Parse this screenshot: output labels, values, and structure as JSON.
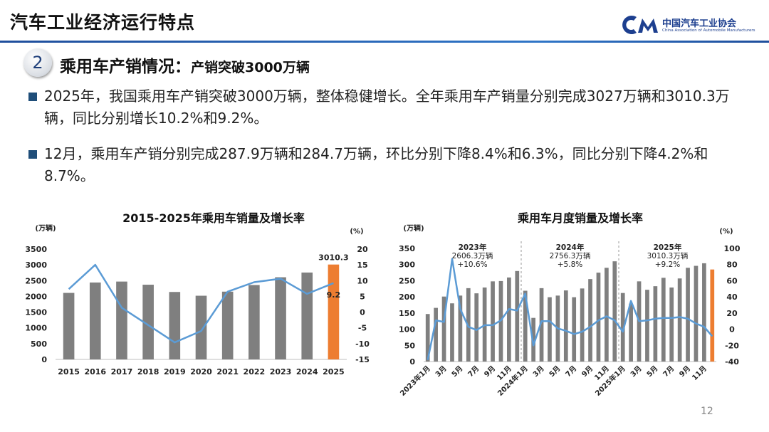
{
  "header": {
    "title": "汽车工业经济运行特点",
    "logo_cn": "中国汽车工业协会",
    "logo_en": "China Association of Automobile Manufacturers"
  },
  "section": {
    "number": "2",
    "title": "乘用车产销情况：",
    "subtitle": "产销突破3000万辆"
  },
  "bullets": [
    "2025年，我国乘用车产销突破3000万辆，整体稳健增长。全年乘用车产销量分别完成3027万辆和3010.3万辆，同比分别增长10.2%和9.2%。",
    "12月，乘用车产销分别完成287.9万辆和284.7万辆，环比分别下降8.4%和6.3%，同比分别下降4.2%和8.7%。"
  ],
  "page_number": "12",
  "chart_data": [
    {
      "type": "bar_line",
      "title": "2015-2025年乘用车销量及增长率",
      "y_label": "(万辆)",
      "y2_label": "(%)",
      "categories": [
        "2015",
        "2016",
        "2017",
        "2018",
        "2019",
        "2020",
        "2021",
        "2022",
        "2023",
        "2024",
        "2025"
      ],
      "series": [
        {
          "type": "bar",
          "color": "#7f7f7f",
          "highlight_color": "#ed7d31",
          "values": [
            2110,
            2440,
            2470,
            2370,
            2140,
            2020,
            2150,
            2360,
            2606.3,
            2756.3,
            3010.3
          ]
        },
        {
          "type": "line",
          "axis": "y2",
          "color": "#5b9bd5",
          "values": [
            7.3,
            15,
            1.4,
            -4.1,
            -9.6,
            -6,
            6.5,
            9.5,
            10.6,
            5.8,
            9.2
          ]
        }
      ],
      "data_labels": "last",
      "ylim": [
        0,
        3500
      ],
      "yticks": [
        0,
        500,
        1000,
        1500,
        2000,
        2500,
        3000,
        3500
      ],
      "y2lim": [
        -15,
        20
      ],
      "y2ticks": [
        -15,
        -10,
        -5,
        0,
        5,
        10,
        15,
        20
      ]
    },
    {
      "type": "bar_line",
      "title": "乘用车月度销量及增长率",
      "y_label": "(万辆)",
      "y2_label": "(%)",
      "categories": [
        "2023年1月",
        null,
        "3月",
        null,
        "5月",
        null,
        "7月",
        null,
        "9月",
        null,
        "11月",
        null,
        "2024年1月",
        null,
        "3月",
        null,
        "5月",
        null,
        "7月",
        null,
        "9月",
        null,
        "11月",
        null,
        "2025年1月",
        null,
        "3月",
        null,
        "5月",
        null,
        "7月",
        null,
        "9月",
        null,
        "11月",
        null
      ],
      "series": [
        {
          "type": "bar",
          "color": "#7f7f7f",
          "highlight_color": "#ed7d31",
          "values": [
            147,
            166,
            201,
            180,
            204,
            227,
            211,
            229,
            248,
            249,
            260,
            280,
            219,
            135,
            227,
            199,
            204,
            220,
            199,
            226,
            255,
            275,
            290,
            310,
            212,
            179,
            248,
            222,
            233,
            259,
            229,
            257,
            290,
            296,
            304,
            284.7
          ]
        },
        {
          "type": "line",
          "axis": "y2",
          "color": "#5b9bd5",
          "values": [
            -38,
            11,
            9,
            87,
            25,
            3,
            -1,
            5,
            5,
            11,
            25,
            23,
            44,
            -20,
            10,
            10,
            1,
            -2,
            -6,
            -3,
            3,
            11,
            16,
            11,
            -3,
            35,
            10,
            11,
            13,
            14,
            14,
            15,
            13,
            7,
            3,
            -8.7
          ]
        }
      ],
      "annotations": [
        {
          "lines": [
            "2023年",
            "2606.3万辆",
            "+10.6%"
          ]
        },
        {
          "lines": [
            "2024年",
            "2756.3万辆",
            "+5.8%"
          ]
        },
        {
          "lines": [
            "2025年",
            "3010.3万辆",
            "+9.2%"
          ]
        }
      ],
      "ylim": [
        0,
        350
      ],
      "yticks": [
        0,
        50,
        100,
        150,
        200,
        250,
        300,
        350
      ],
      "y2lim": [
        -40,
        100
      ],
      "y2ticks": [
        -40,
        -20,
        0,
        20,
        40,
        60,
        80,
        100
      ]
    }
  ]
}
